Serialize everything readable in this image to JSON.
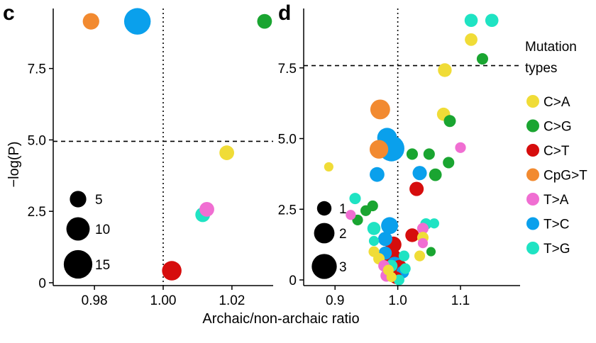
{
  "figure": {
    "x_label": "Archaic/non-archaic ratio",
    "y_label": "−log(P)",
    "legend_title": "Mutation types",
    "legend_title_lines": [
      "Mutation",
      "types"
    ]
  },
  "colors": {
    "C>A": "#f0dc37",
    "C>G": "#1aa531",
    "C>T": "#d60d0d",
    "CpG>T": "#f28a30",
    "T>A": "#f06ed2",
    "T>C": "#0aa0ec",
    "T>G": "#1fe3c3"
  },
  "mutation_types": [
    "C>A",
    "C>G",
    "C>T",
    "CpG>T",
    "T>A",
    "T>C",
    "T>G"
  ],
  "chart_data": [
    {
      "type": "scatter",
      "panel": "c",
      "xlabel": "",
      "ylabel": "−log(P)",
      "xlim": [
        0.968,
        1.032
      ],
      "ylim": [
        -0.1,
        9.6
      ],
      "xticks": [
        0.98,
        1.0,
        1.02
      ],
      "xtick_labels": [
        "0.98",
        "1.00",
        "1.02"
      ],
      "yticks": [
        0,
        2.5,
        5.0,
        7.5
      ],
      "ytick_labels": [
        "0",
        "2.5",
        "5.0",
        "7.5"
      ],
      "vline": 1.0,
      "hline": 4.95,
      "size_legend": [
        5,
        10,
        15
      ],
      "points": [
        {
          "type": "CpG>T",
          "x": 0.979,
          "y": 9.15,
          "size": 5
        },
        {
          "type": "T>C",
          "x": 0.9925,
          "y": 9.15,
          "size": 13
        },
        {
          "type": "C>G",
          "x": 1.0295,
          "y": 9.15,
          "size": 4
        },
        {
          "type": "C>A",
          "x": 1.0185,
          "y": 4.55,
          "size": 4
        },
        {
          "type": "T>G",
          "x": 1.0115,
          "y": 2.38,
          "size": 4
        },
        {
          "type": "T>A",
          "x": 1.0127,
          "y": 2.57,
          "size": 4
        },
        {
          "type": "C>T",
          "x": 1.0025,
          "y": 0.42,
          "size": 7
        }
      ]
    },
    {
      "type": "scatter",
      "panel": "d",
      "xlabel": "",
      "ylabel": "",
      "xlim": [
        0.85,
        1.195
      ],
      "ylim": [
        -0.2,
        9.6
      ],
      "xticks": [
        0.9,
        1.0,
        1.1
      ],
      "xtick_labels": [
        "0.9",
        "1.0",
        "1.1"
      ],
      "yticks": [
        0,
        2.5,
        5.0,
        7.5
      ],
      "ytick_labels": [
        "0",
        "2.5",
        "5.0",
        "7.5"
      ],
      "vline": 1.0,
      "hline": 7.58,
      "size_legend": [
        1,
        2,
        3
      ],
      "points": [
        {
          "type": "T>G",
          "x": 1.117,
          "y": 9.18,
          "size": 0.6
        },
        {
          "type": "T>G",
          "x": 1.15,
          "y": 9.18,
          "size": 0.6
        },
        {
          "type": "C>A",
          "x": 1.117,
          "y": 8.5,
          "size": 0.55
        },
        {
          "type": "C>G",
          "x": 1.135,
          "y": 7.82,
          "size": 0.45
        },
        {
          "type": "C>A",
          "x": 1.075,
          "y": 7.42,
          "size": 0.65
        },
        {
          "type": "CpG>T",
          "x": 0.972,
          "y": 6.03,
          "size": 1.35
        },
        {
          "type": "C>A",
          "x": 1.073,
          "y": 5.86,
          "size": 0.6
        },
        {
          "type": "C>G",
          "x": 1.083,
          "y": 5.62,
          "size": 0.5
        },
        {
          "type": "T>C",
          "x": 0.983,
          "y": 5.03,
          "size": 1.35
        },
        {
          "type": "CpG>T",
          "x": 0.97,
          "y": 4.62,
          "size": 1.2
        },
        {
          "type": "C>G",
          "x": 1.05,
          "y": 4.45,
          "size": 0.45
        },
        {
          "type": "C>G",
          "x": 1.023,
          "y": 4.45,
          "size": 0.45
        },
        {
          "type": "T>A",
          "x": 1.1,
          "y": 4.68,
          "size": 0.4
        },
        {
          "type": "T>C",
          "x": 0.99,
          "y": 4.65,
          "size": 2.3
        },
        {
          "type": "C>G",
          "x": 1.081,
          "y": 4.15,
          "size": 0.45
        },
        {
          "type": "C>A",
          "x": 0.89,
          "y": 4.0,
          "size": 0.3
        },
        {
          "type": "T>C",
          "x": 1.035,
          "y": 3.78,
          "size": 0.7
        },
        {
          "type": "T>C",
          "x": 0.967,
          "y": 3.73,
          "size": 0.75
        },
        {
          "type": "C>G",
          "x": 1.06,
          "y": 3.72,
          "size": 0.55
        },
        {
          "type": "C>T",
          "x": 1.03,
          "y": 3.22,
          "size": 0.7
        },
        {
          "type": "T>G",
          "x": 0.932,
          "y": 2.88,
          "size": 0.45
        },
        {
          "type": "C>G",
          "x": 0.96,
          "y": 2.62,
          "size": 0.4
        },
        {
          "type": "C>G",
          "x": 0.949,
          "y": 2.45,
          "size": 0.4
        },
        {
          "type": "T>A",
          "x": 0.925,
          "y": 2.3,
          "size": 0.35
        },
        {
          "type": "C>G",
          "x": 0.936,
          "y": 2.12,
          "size": 0.4
        },
        {
          "type": "T>G",
          "x": 0.962,
          "y": 1.82,
          "size": 0.6
        },
        {
          "type": "T>C",
          "x": 0.987,
          "y": 1.92,
          "size": 1.0
        },
        {
          "type": "T>G",
          "x": 1.045,
          "y": 1.98,
          "size": 0.45
        },
        {
          "type": "T>G",
          "x": 1.058,
          "y": 2.0,
          "size": 0.35
        },
        {
          "type": "T>A",
          "x": 1.04,
          "y": 1.82,
          "size": 0.45
        },
        {
          "type": "C>T",
          "x": 1.023,
          "y": 1.58,
          "size": 0.65
        },
        {
          "type": "C>A",
          "x": 1.04,
          "y": 1.5,
          "size": 0.45
        },
        {
          "type": "T>C",
          "x": 0.98,
          "y": 1.45,
          "size": 0.7
        },
        {
          "type": "T>G",
          "x": 0.962,
          "y": 1.38,
          "size": 0.35
        },
        {
          "type": "C>T",
          "x": 0.993,
          "y": 1.25,
          "size": 0.9
        },
        {
          "type": "T>A",
          "x": 1.04,
          "y": 1.3,
          "size": 0.35
        },
        {
          "type": "C>G",
          "x": 1.053,
          "y": 1.0,
          "size": 0.3
        },
        {
          "type": "C>A",
          "x": 0.962,
          "y": 1.0,
          "size": 0.4
        },
        {
          "type": "T>C",
          "x": 0.98,
          "y": 0.95,
          "size": 0.6
        },
        {
          "type": "C>T",
          "x": 0.992,
          "y": 0.8,
          "size": 1.0
        },
        {
          "type": "C>A",
          "x": 0.97,
          "y": 0.75,
          "size": 0.45
        },
        {
          "type": "T>G",
          "x": 1.01,
          "y": 0.85,
          "size": 0.4
        },
        {
          "type": "C>A",
          "x": 1.035,
          "y": 0.85,
          "size": 0.4
        },
        {
          "type": "T>C",
          "x": 0.995,
          "y": 0.55,
          "size": 0.8
        },
        {
          "type": "C>T",
          "x": 1.003,
          "y": 0.45,
          "size": 0.75
        },
        {
          "type": "T>A",
          "x": 0.978,
          "y": 0.5,
          "size": 0.45
        },
        {
          "type": "T>G",
          "x": 0.99,
          "y": 0.5,
          "size": 0.5
        },
        {
          "type": "C>A",
          "x": 0.985,
          "y": 0.35,
          "size": 0.4
        },
        {
          "type": "C>T",
          "x": 1.0,
          "y": 0.3,
          "size": 0.6
        },
        {
          "type": "T>C",
          "x": 1.008,
          "y": 0.28,
          "size": 0.55
        },
        {
          "type": "T>G",
          "x": 1.012,
          "y": 0.4,
          "size": 0.4
        },
        {
          "type": "T>A",
          "x": 0.982,
          "y": 0.15,
          "size": 0.5
        },
        {
          "type": "C>T",
          "x": 0.997,
          "y": 0.08,
          "size": 0.55
        },
        {
          "type": "C>A",
          "x": 0.99,
          "y": 0.1,
          "size": 0.35
        },
        {
          "type": "T>G",
          "x": 1.002,
          "y": 0.0,
          "size": 0.4
        }
      ]
    }
  ]
}
